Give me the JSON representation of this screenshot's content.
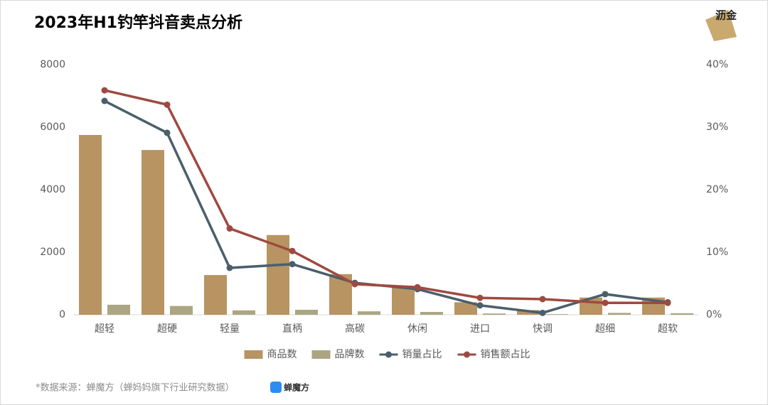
{
  "chart_data": {
    "type": "bar",
    "title": "2023年H1钓竿抖音卖点分析",
    "categories": [
      "超轻",
      "超硬",
      "轻量",
      "直柄",
      "高碳",
      "休闲",
      "进口",
      "快调",
      "超细",
      "超软"
    ],
    "series": [
      {
        "name": "商品数",
        "type": "bar",
        "color": "#b89462",
        "values": [
          5750,
          5270,
          1270,
          2550,
          1300,
          900,
          400,
          150,
          550,
          550
        ]
      },
      {
        "name": "品牌数",
        "type": "bar",
        "color": "#aba583",
        "values": [
          320,
          280,
          140,
          160,
          110,
          90,
          40,
          20,
          60,
          50
        ]
      },
      {
        "name": "销量占比",
        "type": "line",
        "axis": "y2",
        "color": "#4a5f6b",
        "values": [
          34.2,
          29.1,
          7.5,
          8.1,
          5.1,
          4.1,
          1.5,
          0.3,
          3.3,
          2.0
        ]
      },
      {
        "name": "销售额占比",
        "type": "line",
        "axis": "y2",
        "color": "#9e4a40",
        "values": [
          35.9,
          33.6,
          13.8,
          10.2,
          4.9,
          4.4,
          2.7,
          2.5,
          1.9,
          1.9
        ]
      }
    ],
    "ylim": [
      0,
      8000
    ],
    "yticks": [
      0,
      2000,
      4000,
      6000,
      8000
    ],
    "y2lim": [
      0,
      40
    ],
    "y2ticks": [
      {
        "value": 0,
        "label": "0%"
      },
      {
        "value": 10,
        "label": "10%"
      },
      {
        "value": 20,
        "label": "20%"
      },
      {
        "value": 30,
        "label": "30%"
      },
      {
        "value": 40,
        "label": "40%"
      }
    ],
    "grid": false,
    "legend": "bottom",
    "source": "*数据来源：蝉魔方（蝉妈妈旗下行业研究数据）",
    "source_logo": "蝉魔方",
    "watermark": "沥金"
  }
}
